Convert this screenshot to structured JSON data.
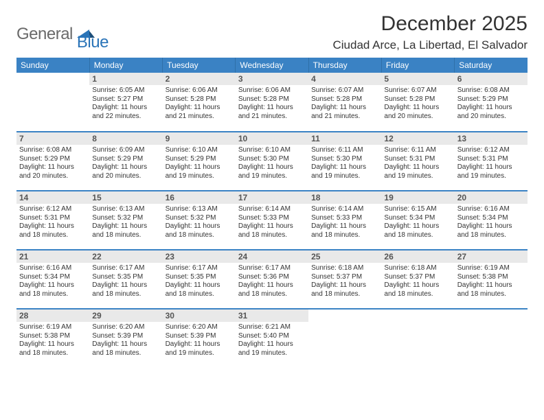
{
  "brand": {
    "part1": "General",
    "part2": "Blue"
  },
  "title": "December 2025",
  "location": "Ciudad Arce, La Libertad, El Salvador",
  "colors": {
    "header_bg": "#3a82c4",
    "header_text": "#ffffff",
    "daynum_bg": "#e9e9e9",
    "rule": "#3a82c4",
    "brand_gray": "#6a6a6a",
    "brand_blue": "#2a74b8"
  },
  "weekdays": [
    "Sunday",
    "Monday",
    "Tuesday",
    "Wednesday",
    "Thursday",
    "Friday",
    "Saturday"
  ],
  "weeks": [
    [
      null,
      {
        "d": "1",
        "sr": "6:05 AM",
        "ss": "5:27 PM",
        "dl": "11 hours and 22 minutes."
      },
      {
        "d": "2",
        "sr": "6:06 AM",
        "ss": "5:28 PM",
        "dl": "11 hours and 21 minutes."
      },
      {
        "d": "3",
        "sr": "6:06 AM",
        "ss": "5:28 PM",
        "dl": "11 hours and 21 minutes."
      },
      {
        "d": "4",
        "sr": "6:07 AM",
        "ss": "5:28 PM",
        "dl": "11 hours and 21 minutes."
      },
      {
        "d": "5",
        "sr": "6:07 AM",
        "ss": "5:28 PM",
        "dl": "11 hours and 20 minutes."
      },
      {
        "d": "6",
        "sr": "6:08 AM",
        "ss": "5:29 PM",
        "dl": "11 hours and 20 minutes."
      }
    ],
    [
      {
        "d": "7",
        "sr": "6:08 AM",
        "ss": "5:29 PM",
        "dl": "11 hours and 20 minutes."
      },
      {
        "d": "8",
        "sr": "6:09 AM",
        "ss": "5:29 PM",
        "dl": "11 hours and 20 minutes."
      },
      {
        "d": "9",
        "sr": "6:10 AM",
        "ss": "5:29 PM",
        "dl": "11 hours and 19 minutes."
      },
      {
        "d": "10",
        "sr": "6:10 AM",
        "ss": "5:30 PM",
        "dl": "11 hours and 19 minutes."
      },
      {
        "d": "11",
        "sr": "6:11 AM",
        "ss": "5:30 PM",
        "dl": "11 hours and 19 minutes."
      },
      {
        "d": "12",
        "sr": "6:11 AM",
        "ss": "5:31 PM",
        "dl": "11 hours and 19 minutes."
      },
      {
        "d": "13",
        "sr": "6:12 AM",
        "ss": "5:31 PM",
        "dl": "11 hours and 19 minutes."
      }
    ],
    [
      {
        "d": "14",
        "sr": "6:12 AM",
        "ss": "5:31 PM",
        "dl": "11 hours and 18 minutes."
      },
      {
        "d": "15",
        "sr": "6:13 AM",
        "ss": "5:32 PM",
        "dl": "11 hours and 18 minutes."
      },
      {
        "d": "16",
        "sr": "6:13 AM",
        "ss": "5:32 PM",
        "dl": "11 hours and 18 minutes."
      },
      {
        "d": "17",
        "sr": "6:14 AM",
        "ss": "5:33 PM",
        "dl": "11 hours and 18 minutes."
      },
      {
        "d": "18",
        "sr": "6:14 AM",
        "ss": "5:33 PM",
        "dl": "11 hours and 18 minutes."
      },
      {
        "d": "19",
        "sr": "6:15 AM",
        "ss": "5:34 PM",
        "dl": "11 hours and 18 minutes."
      },
      {
        "d": "20",
        "sr": "6:16 AM",
        "ss": "5:34 PM",
        "dl": "11 hours and 18 minutes."
      }
    ],
    [
      {
        "d": "21",
        "sr": "6:16 AM",
        "ss": "5:34 PM",
        "dl": "11 hours and 18 minutes."
      },
      {
        "d": "22",
        "sr": "6:17 AM",
        "ss": "5:35 PM",
        "dl": "11 hours and 18 minutes."
      },
      {
        "d": "23",
        "sr": "6:17 AM",
        "ss": "5:35 PM",
        "dl": "11 hours and 18 minutes."
      },
      {
        "d": "24",
        "sr": "6:17 AM",
        "ss": "5:36 PM",
        "dl": "11 hours and 18 minutes."
      },
      {
        "d": "25",
        "sr": "6:18 AM",
        "ss": "5:37 PM",
        "dl": "11 hours and 18 minutes."
      },
      {
        "d": "26",
        "sr": "6:18 AM",
        "ss": "5:37 PM",
        "dl": "11 hours and 18 minutes."
      },
      {
        "d": "27",
        "sr": "6:19 AM",
        "ss": "5:38 PM",
        "dl": "11 hours and 18 minutes."
      }
    ],
    [
      {
        "d": "28",
        "sr": "6:19 AM",
        "ss": "5:38 PM",
        "dl": "11 hours and 18 minutes."
      },
      {
        "d": "29",
        "sr": "6:20 AM",
        "ss": "5:39 PM",
        "dl": "11 hours and 18 minutes."
      },
      {
        "d": "30",
        "sr": "6:20 AM",
        "ss": "5:39 PM",
        "dl": "11 hours and 19 minutes."
      },
      {
        "d": "31",
        "sr": "6:21 AM",
        "ss": "5:40 PM",
        "dl": "11 hours and 19 minutes."
      },
      null,
      null,
      null
    ]
  ],
  "labels": {
    "sunrise": "Sunrise:",
    "sunset": "Sunset:",
    "daylight": "Daylight:"
  }
}
